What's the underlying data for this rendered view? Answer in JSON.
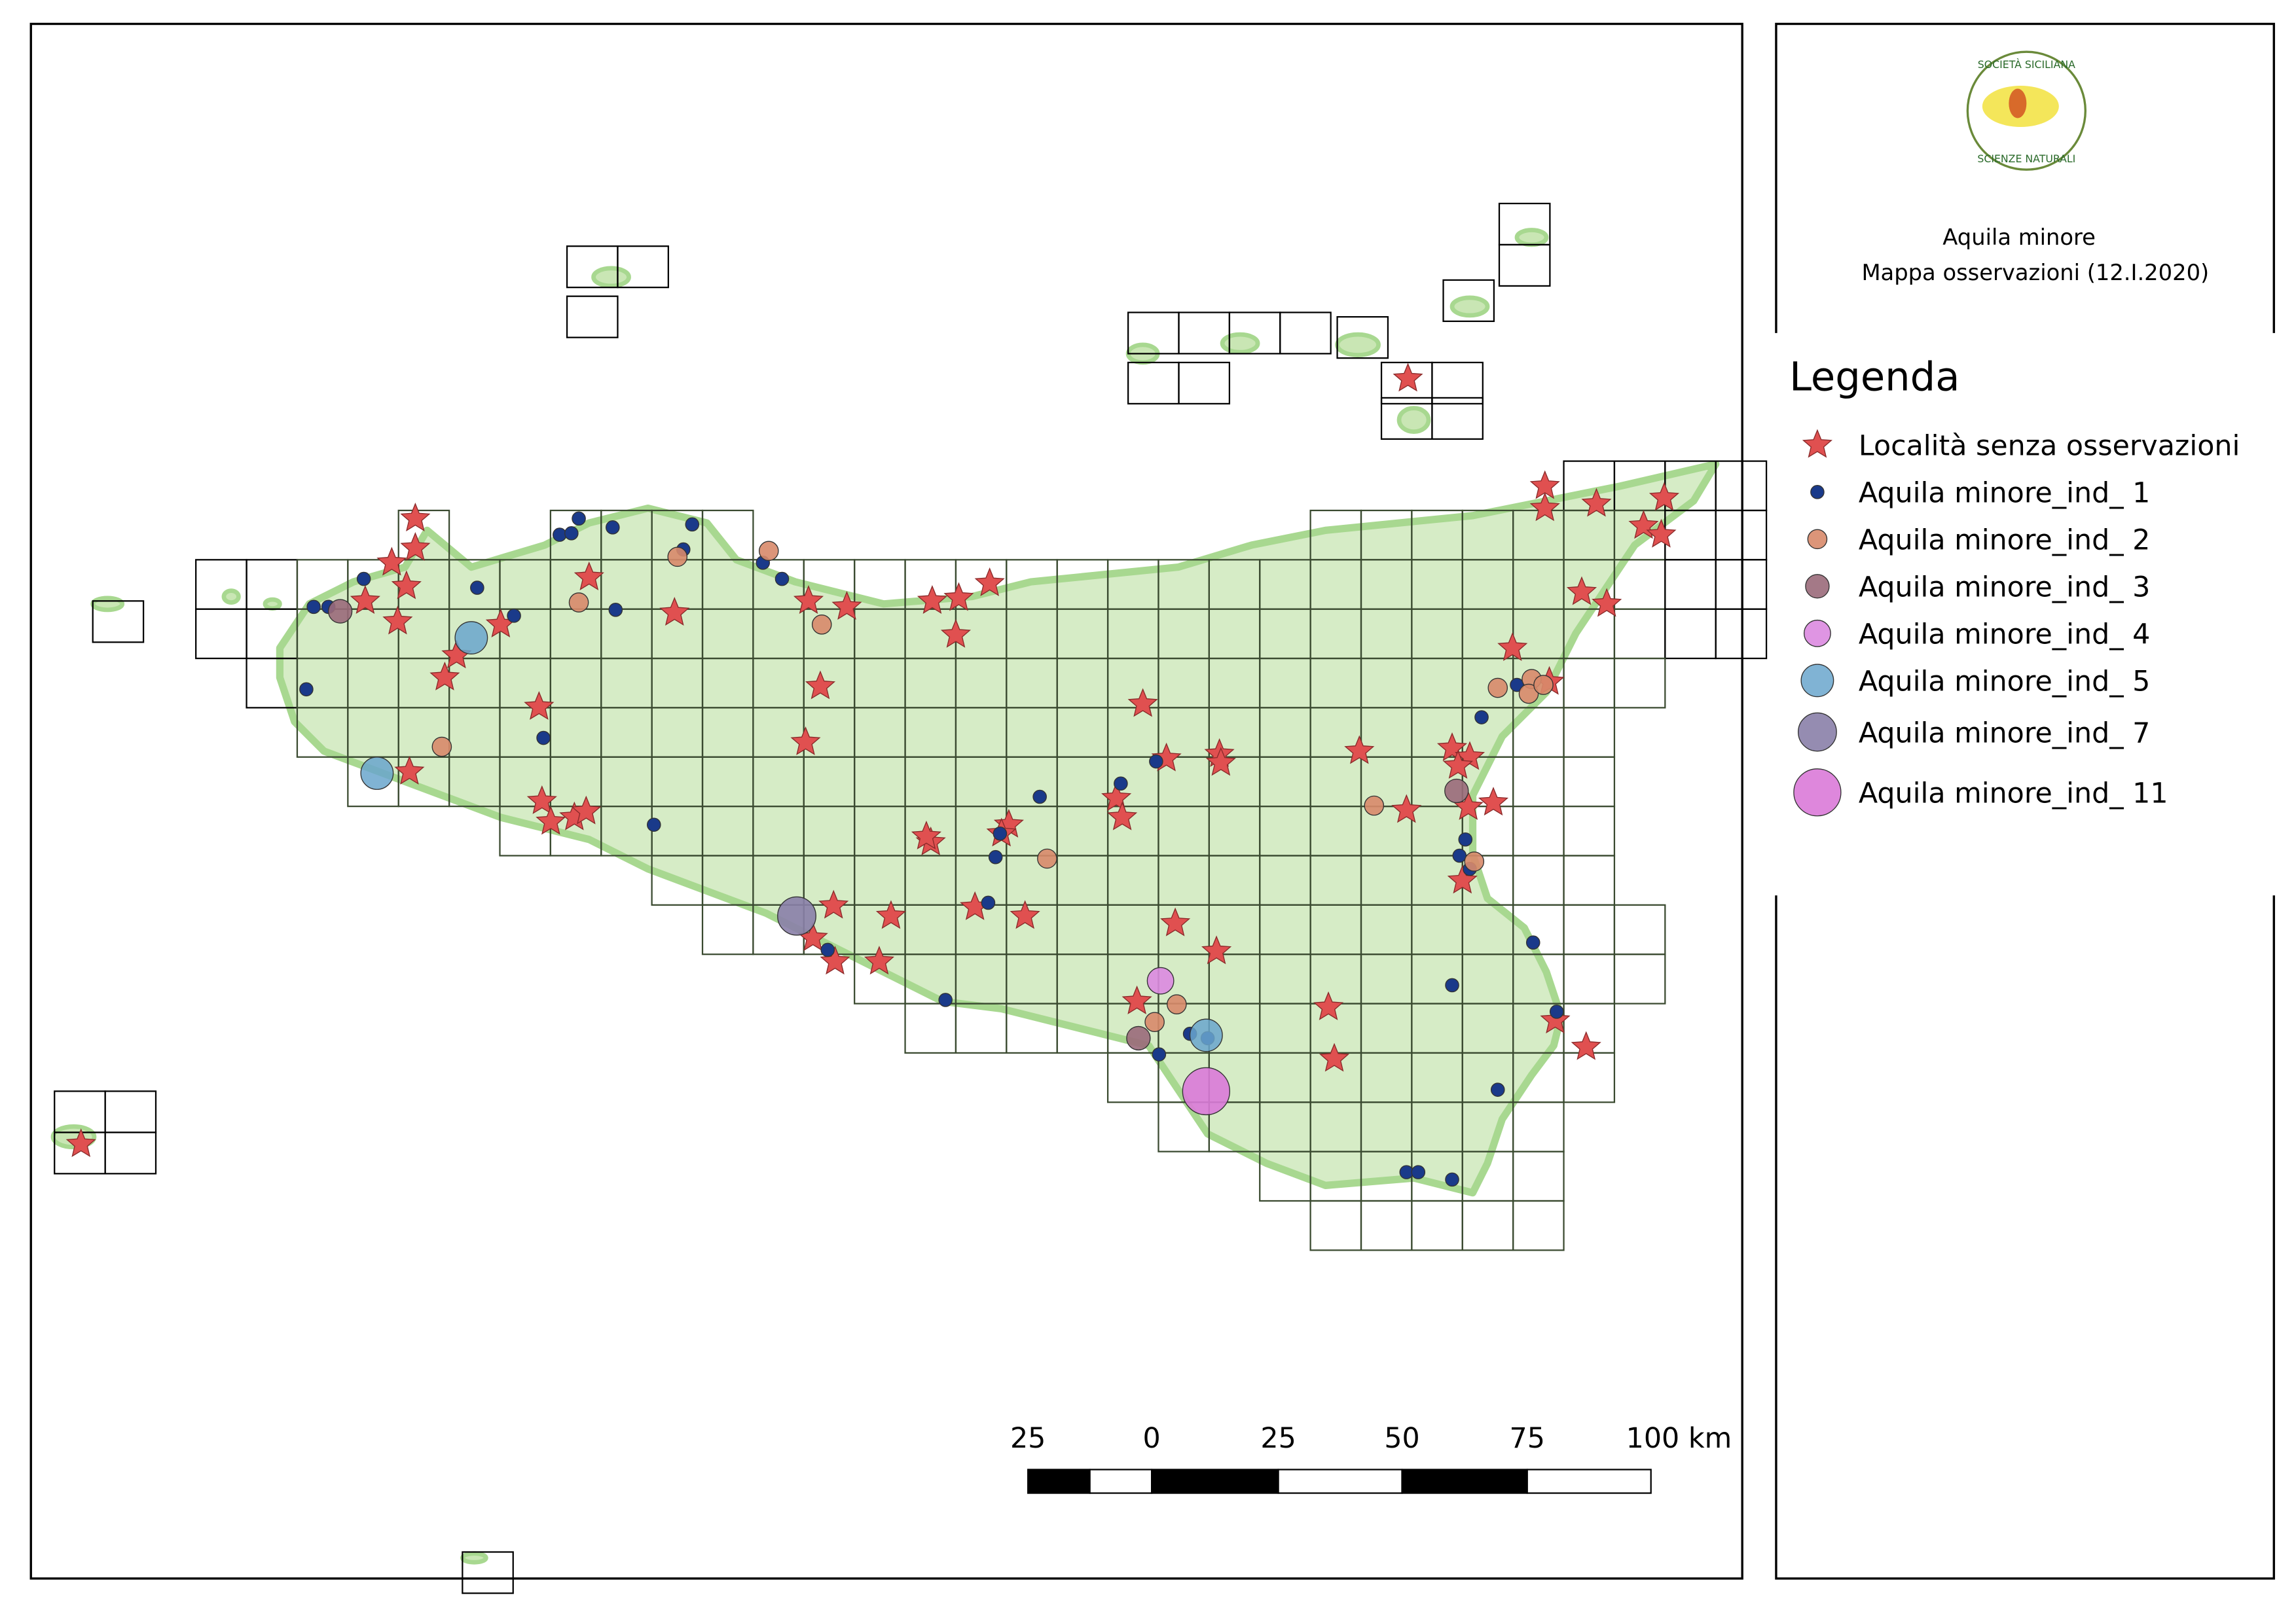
{
  "header": {
    "title": "Aquila minore",
    "subtitle": "Mappa osservazioni (12.I.2020)",
    "logo_top": "SOCIETÀ SICILIANA",
    "logo_bottom": "SCIENZE NATURALI"
  },
  "legend": {
    "title": "Legenda",
    "items": [
      "Località senza osservazioni",
      "Aquila minore_ind_ 1",
      "Aquila minore_ind_ 2",
      "Aquila minore_ind_ 3",
      "Aquila minore_ind_ 4",
      "Aquila minore_ind_ 5",
      "Aquila minore_ind_ 7",
      "Aquila minore_ind_ 11"
    ]
  },
  "scale_bar": {
    "labels": [
      "25",
      "0",
      "25",
      "50",
      "75",
      "100 km"
    ]
  }
}
